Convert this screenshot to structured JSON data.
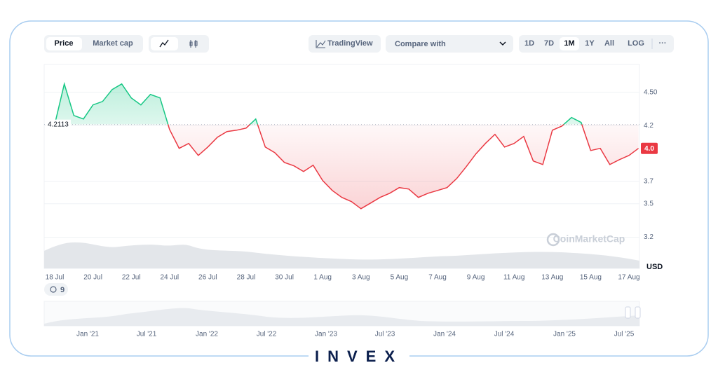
{
  "toolbar": {
    "price": "Price",
    "market_cap": "Market cap",
    "tradingview": "TradingView",
    "compare": "Compare with",
    "ranges": [
      "1D",
      "7D",
      "1M",
      "1Y",
      "All"
    ],
    "log": "LOG",
    "more": "···"
  },
  "chart_data": {
    "type": "line",
    "categories": [
      "18 Jul",
      null,
      null,
      null,
      "20 Jul",
      null,
      null,
      null,
      "22 Jul",
      null,
      null,
      null,
      "24 Jul",
      null,
      null,
      null,
      "26 Jul",
      null,
      null,
      null,
      "28 Jul",
      null,
      null,
      null,
      "30 Jul",
      null,
      null,
      null,
      "1 Aug",
      null,
      null,
      null,
      "3 Aug",
      null,
      null,
      null,
      "5 Aug",
      null,
      null,
      null,
      "7 Aug",
      null,
      null,
      null,
      "9 Aug",
      null,
      null,
      null,
      "11 Aug",
      null,
      null,
      null,
      "13 Aug",
      null,
      null,
      null,
      "15 Aug",
      null,
      null,
      null,
      "17 Aug",
      null
    ],
    "values": [
      4.211,
      4.575,
      4.292,
      4.261,
      4.387,
      4.418,
      4.525,
      4.575,
      4.45,
      4.387,
      4.481,
      4.45,
      4.167,
      3.997,
      4.041,
      3.934,
      4.009,
      4.097,
      4.148,
      4.16,
      4.179,
      4.261,
      4.009,
      3.959,
      3.871,
      3.84,
      3.789,
      3.846,
      3.708,
      3.619,
      3.557,
      3.519,
      3.456,
      3.506,
      3.557,
      3.594,
      3.645,
      3.632,
      3.557,
      3.594,
      3.619,
      3.645,
      3.726,
      3.833,
      3.947,
      4.041,
      4.123,
      4.009,
      4.041,
      4.104,
      3.884,
      3.852,
      4.16,
      4.198,
      4.274,
      4.23,
      3.978,
      3.997,
      3.852,
      3.896,
      3.934,
      3.997
    ],
    "colors": {
      "above": "#16c784",
      "below": "#ea3943"
    },
    "baseline": 4.2113,
    "current_price_label": "4.0",
    "ylim": [
      2.92,
      4.75
    ],
    "yticks": [
      {
        "value": 4.5,
        "label": "4.50"
      },
      4.2,
      3.7,
      3.5,
      3.2
    ],
    "y_unit": "USD",
    "grid": true,
    "watermark": "CoinMarketCap"
  },
  "navigator": {
    "badge": "9",
    "labels": [
      "Jan '21",
      "Jul '21",
      "Jan '22",
      "Jul '22",
      "Jan '23",
      "Jul '23",
      "Jan '24",
      "Jul '24",
      "Jan '25",
      "Jul '25"
    ]
  },
  "brand": "INVEX"
}
